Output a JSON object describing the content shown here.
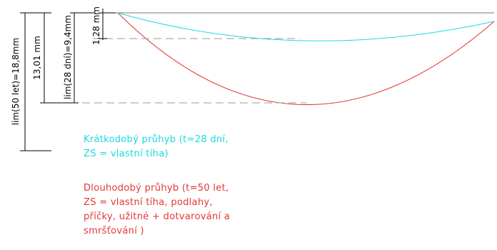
{
  "colors": {
    "short_term": "#19d9e0",
    "long_term": "#e53535",
    "dimension": "#000000",
    "guide": "#9a9a9a"
  },
  "dimensions": {
    "lim_50": "lim(50 let)=18,8mm",
    "lim_28": "lim(28 dní)=9,4mm",
    "long_value": "13,01 mm",
    "short_value": "1,28 mm"
  },
  "legend": {
    "short_term_lines": [
      "Krátkodobý průhyb (t=28 dní,",
      "ZS = vlastní tíha)"
    ],
    "long_term_lines": [
      "Dlouhodobý průhyb (t=50 let,",
      "ZS = vlastní tíha, podlahy,",
      "příčky, užitné + dotvarování a",
      "smršťování )"
    ]
  },
  "curves": {
    "short_term_deflection_mm": 1.28,
    "long_term_deflection_mm": 13.01
  }
}
